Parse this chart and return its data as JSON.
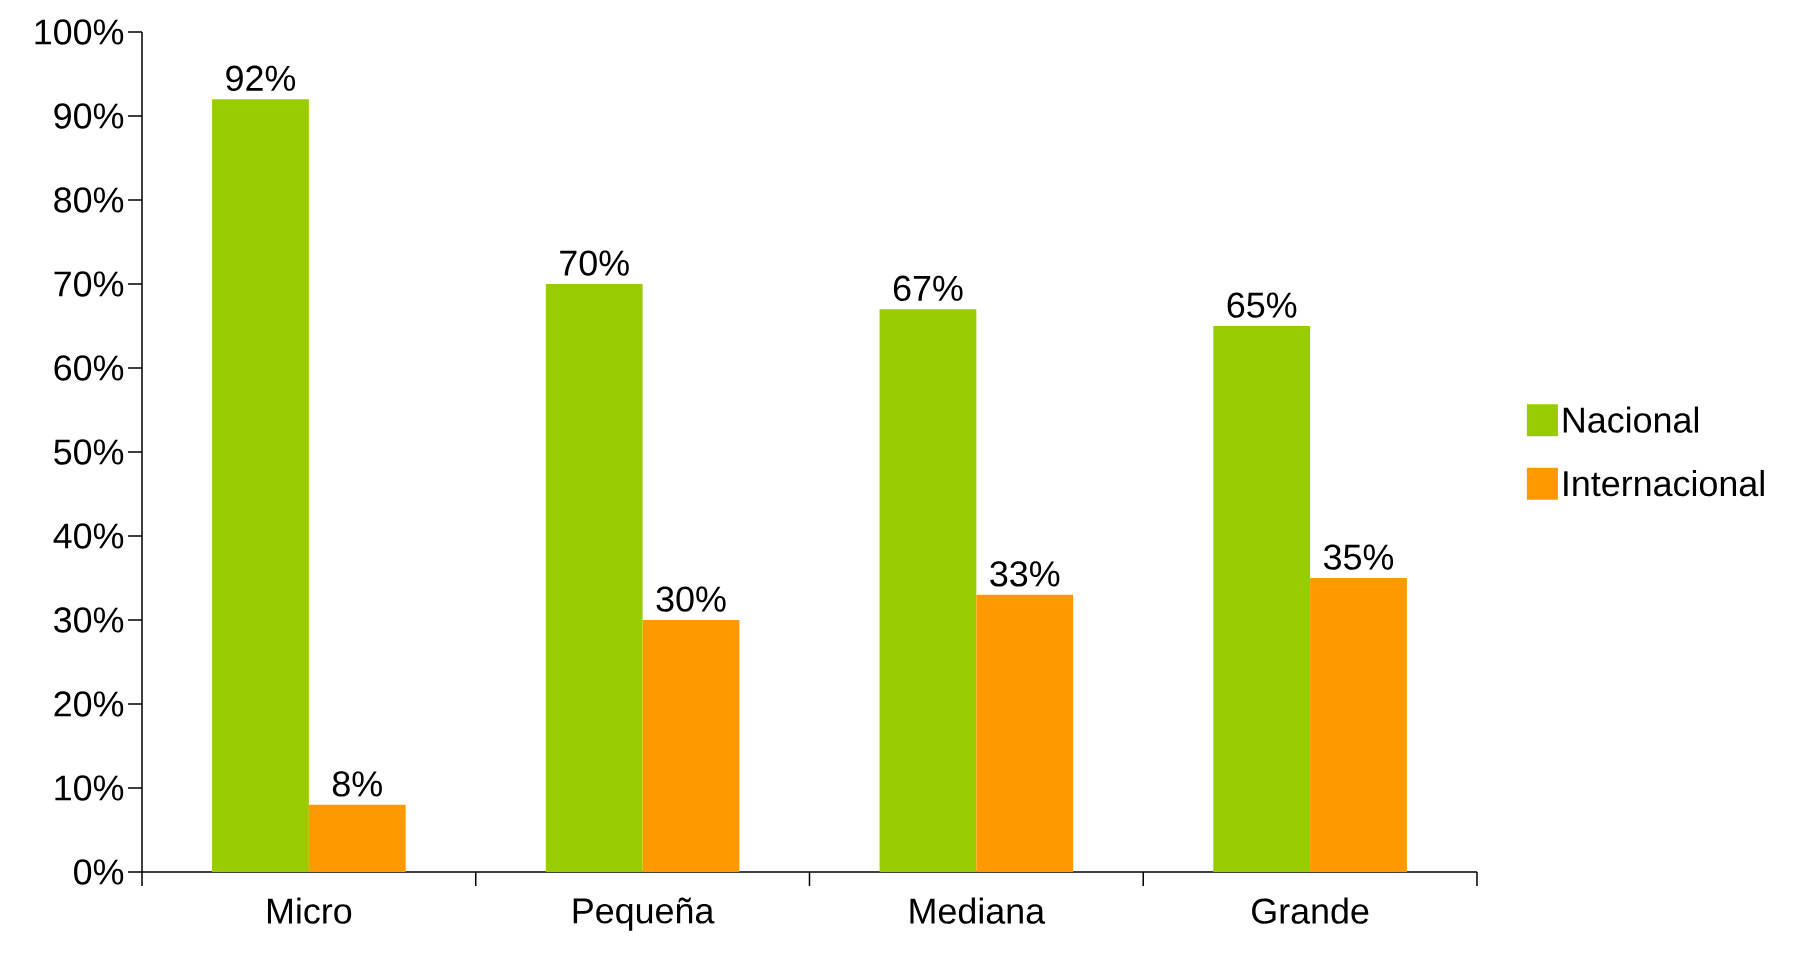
{
  "chart_data": {
    "type": "bar",
    "categories": [
      "Micro",
      "Pequeña",
      "Mediana",
      "Grande"
    ],
    "series": [
      {
        "name": "Nacional",
        "color": "#99cc00",
        "values": [
          92,
          70,
          67,
          65
        ],
        "value_labels": [
          "92%",
          "70%",
          "67%",
          "65%"
        ]
      },
      {
        "name": "Internacional",
        "color": "#ff9900",
        "values": [
          8,
          30,
          33,
          35
        ],
        "value_labels": [
          "8%",
          "30%",
          "33%",
          "35%"
        ]
      }
    ],
    "ylim": [
      0,
      100
    ],
    "yticks": [
      {
        "value": 0,
        "label": "0%"
      },
      {
        "value": 10,
        "label": "10%"
      },
      {
        "value": 20,
        "label": "20%"
      },
      {
        "value": 30,
        "label": "30%"
      },
      {
        "value": 40,
        "label": "40%"
      },
      {
        "value": 50,
        "label": "50%"
      },
      {
        "value": 60,
        "label": "60%"
      },
      {
        "value": 70,
        "label": "70%"
      },
      {
        "value": 80,
        "label": "80%"
      },
      {
        "value": 90,
        "label": "90%"
      },
      {
        "value": 100,
        "label": "100%"
      }
    ],
    "legend": "right"
  }
}
